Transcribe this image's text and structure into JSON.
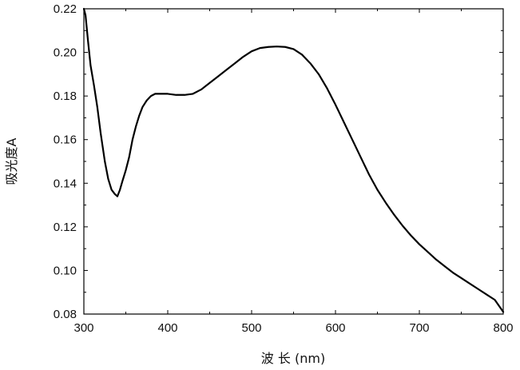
{
  "chart_data": {
    "type": "line",
    "title": "",
    "xlabel": "波 长 (nm)",
    "ylabel": "吸光度A",
    "xlim": [
      300,
      800
    ],
    "ylim": [
      0.08,
      0.22
    ],
    "grid": false,
    "legend": "none",
    "x_ticks": [
      300,
      400,
      500,
      600,
      700,
      800
    ],
    "y_ticks": [
      0.08,
      0.1,
      0.12,
      0.14,
      0.16,
      0.18,
      0.2,
      0.22
    ],
    "y_tick_labels": [
      "0.08",
      "0.10",
      "0.12",
      "0.14",
      "0.16",
      "0.18",
      "0.20",
      "0.22"
    ],
    "series": [
      {
        "color": "#000000",
        "x": [
          300,
          302,
          305,
          308,
          312,
          316,
          320,
          325,
          329,
          333,
          337,
          340,
          343,
          346,
          350,
          354,
          358,
          362,
          366,
          370,
          375,
          380,
          385,
          390,
          395,
          400,
          410,
          420,
          430,
          440,
          450,
          460,
          470,
          480,
          490,
          500,
          510,
          520,
          530,
          540,
          550,
          560,
          570,
          580,
          590,
          600,
          610,
          620,
          630,
          640,
          650,
          660,
          670,
          680,
          690,
          700,
          710,
          720,
          730,
          740,
          750,
          760,
          770,
          780,
          790,
          800
        ],
        "y": [
          0.22,
          0.217,
          0.205,
          0.194,
          0.185,
          0.175,
          0.163,
          0.15,
          0.142,
          0.137,
          0.135,
          0.134,
          0.137,
          0.141,
          0.146,
          0.152,
          0.16,
          0.166,
          0.171,
          0.175,
          0.178,
          0.18,
          0.181,
          0.181,
          0.181,
          0.181,
          0.1805,
          0.1805,
          0.181,
          0.183,
          0.186,
          0.189,
          0.192,
          0.195,
          0.198,
          0.2005,
          0.202,
          0.2025,
          0.2027,
          0.2025,
          0.2015,
          0.199,
          0.195,
          0.19,
          0.1835,
          0.176,
          0.168,
          0.16,
          0.152,
          0.144,
          0.137,
          0.131,
          0.1255,
          0.1205,
          0.116,
          0.112,
          0.1085,
          0.105,
          0.102,
          0.099,
          0.0965,
          0.094,
          0.0915,
          0.089,
          0.0865,
          0.081
        ]
      }
    ]
  }
}
